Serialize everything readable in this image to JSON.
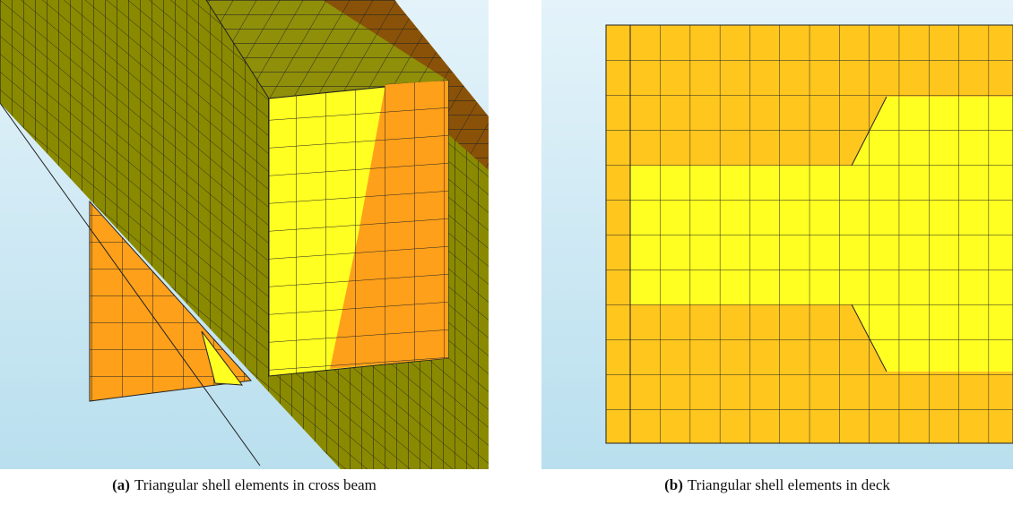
{
  "figures": [
    {
      "label": "(a)",
      "caption": "Triangular shell elements in cross beam"
    },
    {
      "label": "(b)",
      "caption": "Triangular shell elements in deck"
    }
  ]
}
